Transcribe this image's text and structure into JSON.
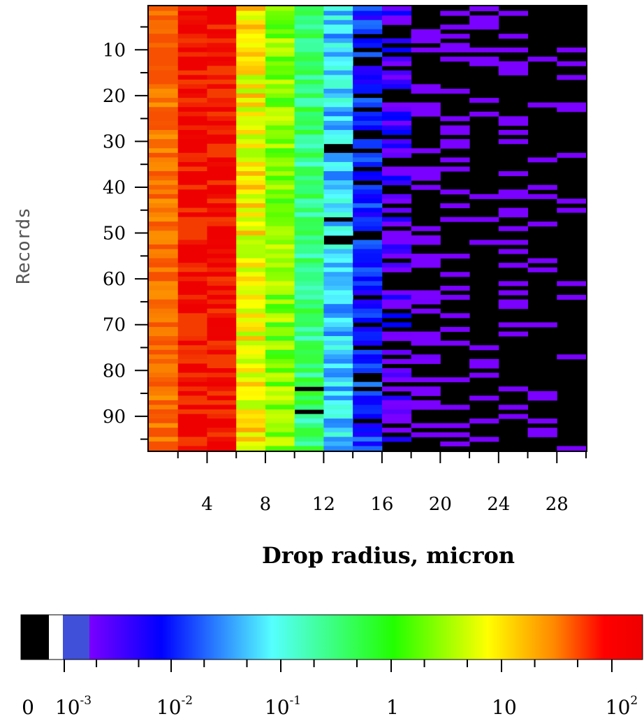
{
  "chart_data": {
    "type": "heatmap",
    "xlabel": "Drop radius, micron",
    "ylabel": "Records",
    "x_range": [
      0,
      30
    ],
    "y_range": [
      1,
      97
    ],
    "x_tick_labels": [
      "4",
      "8",
      "12",
      "16",
      "20",
      "24",
      "28"
    ],
    "y_tick_labels": [
      "10",
      "20",
      "30",
      "40",
      "50",
      "60",
      "70",
      "80",
      "90"
    ],
    "n_records": 97,
    "n_bins": 15,
    "bin_width_micron": 2,
    "value_scale": "log",
    "colorbar": {
      "labels": [
        {
          "base": "0",
          "exp": ""
        },
        {
          "base": "10",
          "exp": "-3"
        },
        {
          "base": "10",
          "exp": "-2"
        },
        {
          "base": "10",
          "exp": "-1"
        },
        {
          "base": "1",
          "exp": ""
        },
        {
          "base": "10",
          "exp": ""
        },
        {
          "base": "10",
          "exp": "2"
        }
      ],
      "zero_color": "#000000",
      "min_color": "#4050d8"
    },
    "bin_typical_log10_concentration": [
      1.7,
      2.0,
      2.0,
      0.9,
      0.3,
      -0.6,
      -1.4,
      -2.2,
      -2.8,
      -3.4,
      -3.7,
      -4.0,
      -4.3,
      -4.5,
      -4.7
    ],
    "grid": false
  }
}
